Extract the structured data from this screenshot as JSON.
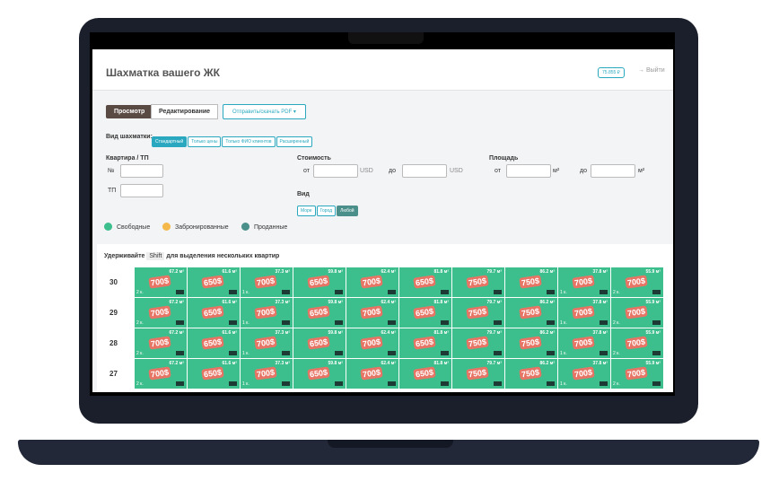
{
  "header": {
    "title": "Шахматка вашего ЖК",
    "balance": "75.855 ₽",
    "logout": "→ Выйти"
  },
  "toolbar": {
    "tabs": [
      "Просмотр",
      "Редактирование"
    ],
    "pdf": "Отправить/скачать PDF ▾"
  },
  "view_mode": {
    "label": "Вид шахматки:",
    "options": [
      "Стандартный",
      "Только цены",
      "Только ФИО клиентов",
      "Расширенный"
    ]
  },
  "filters": {
    "apartment": {
      "label": "Квартира / ТП",
      "number": "№",
      "tp": "ТП"
    },
    "price": {
      "label": "Стоимость",
      "from": "от",
      "unit_from": "USD",
      "to": "до",
      "unit_to": "USD"
    },
    "area": {
      "label": "Площадь",
      "from": "от",
      "unit_from": "м²",
      "to": "до",
      "unit_to": "м²"
    },
    "view": {
      "label": "Вид",
      "options": [
        "Море",
        "Город",
        "Любой"
      ]
    }
  },
  "legend": [
    "Свободные",
    "Забронированные",
    "Проданные"
  ],
  "hint": {
    "before": "Удерживайте",
    "key": "Shift",
    "after": "для выделения нескольких квартир"
  },
  "grid": {
    "floors": [
      "30",
      "29",
      "28",
      "27"
    ],
    "columns": [
      {
        "area": "67.2 м²",
        "price": "700$",
        "rooms": "2 к."
      },
      {
        "area": "61.6 м²",
        "price": "650$",
        "rooms": null
      },
      {
        "area": "37.3 м²",
        "price": "700$",
        "rooms": "1 к."
      },
      {
        "area": "59.8 м²",
        "price": "650$",
        "rooms": null
      },
      {
        "area": "62.4 м²",
        "price": "700$",
        "rooms": null
      },
      {
        "area": "81.8 м²",
        "price": "650$",
        "rooms": null
      },
      {
        "area": "79.7 м²",
        "price": "750$",
        "rooms": null
      },
      {
        "area": "86.2 м²",
        "price": "750$",
        "rooms": null
      },
      {
        "area": "37.8 м²",
        "price": "700$",
        "rooms": "1 к."
      },
      {
        "area": "55.9 м²",
        "price": "700$",
        "rooms": "2 к."
      }
    ]
  }
}
